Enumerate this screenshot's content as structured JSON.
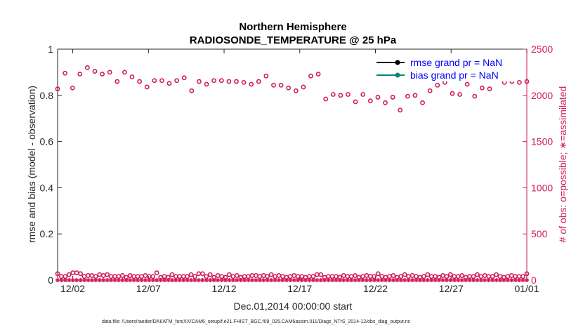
{
  "chart_data": {
    "type": "scatter",
    "title_line1": "Northern Hemisphere",
    "title_line2": "RADIOSONDE_TEMPERATURE @ 25 hPa",
    "xlabel": "Dec.01,2014 00:00:00 start",
    "ylabel_left": "rmse and bias (model - observation)",
    "ylabel_right": "# of obs: o=possible; ∗=assimilated",
    "x_range_days": [
      0,
      31
    ],
    "x_ticks": [
      {
        "day": 1,
        "label": "12/02"
      },
      {
        "day": 6,
        "label": "12/07"
      },
      {
        "day": 11,
        "label": "12/12"
      },
      {
        "day": 16,
        "label": "12/17"
      },
      {
        "day": 21,
        "label": "12/22"
      },
      {
        "day": 26,
        "label": "12/27"
      },
      {
        "day": 31,
        "label": "01/01"
      }
    ],
    "y_left_range": [
      0,
      1
    ],
    "y_left_ticks": [
      "0",
      "0.2",
      "0.4",
      "0.6",
      "0.8",
      "1"
    ],
    "y_right_range": [
      0,
      2500
    ],
    "y_right_ticks": [
      "0",
      "500",
      "1000",
      "1500",
      "2000",
      "2500"
    ],
    "legend": [
      {
        "label": "rmse grand pr = NaN",
        "color": "#000000"
      },
      {
        "label": "bias grand pr = NaN",
        "color": "#00897b"
      }
    ],
    "possible_obs_series": {
      "name": "possible (o)",
      "color": "#d01c5b",
      "values": [
        2070,
        2240,
        2080,
        2230,
        2300,
        2260,
        2230,
        2250,
        2150,
        2250,
        2200,
        2150,
        2090,
        2160,
        2160,
        2130,
        2160,
        2190,
        2050,
        2150,
        2120,
        2160,
        2160,
        2150,
        2150,
        2140,
        2120,
        2150,
        2210,
        2110,
        2110,
        2080,
        2050,
        2090,
        2210,
        2230,
        1960,
        2010,
        2000,
        2010,
        1930,
        2010,
        1940,
        1980,
        1920,
        1980,
        1840,
        1990,
        2000,
        1920,
        2050,
        2110,
        2140,
        2020,
        2010,
        2120,
        1990,
        2080,
        2070,
        2240,
        2140,
        2150,
        2140,
        2150
      ]
    },
    "assimilated_obs_series": {
      "name": "assimilated (*)",
      "color": "#d01c5b",
      "values": [
        0,
        0,
        0,
        0,
        0,
        0,
        0,
        0,
        0,
        0,
        0,
        0,
        0,
        0,
        0,
        0,
        0,
        0,
        0,
        0,
        0,
        0,
        0,
        0,
        0,
        0,
        0,
        0,
        0,
        0,
        0,
        0,
        0,
        0,
        0,
        0,
        0,
        0,
        0,
        0,
        0,
        0,
        0,
        0,
        0,
        0,
        0,
        0,
        0,
        0,
        0,
        0,
        0,
        0,
        0,
        0,
        0,
        0,
        0,
        0,
        0,
        0,
        0,
        0
      ]
    },
    "low_possible_series": {
      "values": [
        70,
        40,
        40,
        60,
        80,
        80,
        70,
        40,
        50,
        50,
        40,
        60,
        50,
        60,
        40,
        40,
        40,
        50,
        30,
        50,
        40,
        40,
        40,
        50,
        40,
        40,
        80,
        30,
        40,
        30,
        60,
        40,
        40,
        40,
        40,
        60,
        40,
        70,
        70,
        40,
        60,
        30,
        50,
        40,
        30,
        60,
        40,
        50,
        30,
        40,
        40,
        50,
        50,
        40,
        50,
        40,
        60,
        40,
        50,
        40,
        30,
        40,
        50,
        40,
        40,
        30,
        40,
        40,
        60,
        60,
        30,
        40,
        40,
        40,
        30,
        50,
        40,
        40,
        50,
        30,
        40,
        50,
        40,
        40,
        70,
        40,
        30,
        40,
        50,
        30,
        40,
        60,
        40,
        50,
        40,
        30,
        40,
        60,
        40,
        40,
        30,
        50,
        40,
        60,
        40,
        40,
        50,
        30,
        40,
        40,
        60,
        40,
        50,
        40,
        40,
        60,
        40,
        30,
        40,
        50,
        40,
        40,
        40,
        70
      ]
    }
  },
  "footer": {
    "text": "data file: /Users/raeder/DAI/ATM_forcXX/CAM6_setup/f.e21.FHIST_BGC.f09_025.CAM6assim.011/Diags_NTrS_2014-12/obs_diag_output.nc"
  }
}
